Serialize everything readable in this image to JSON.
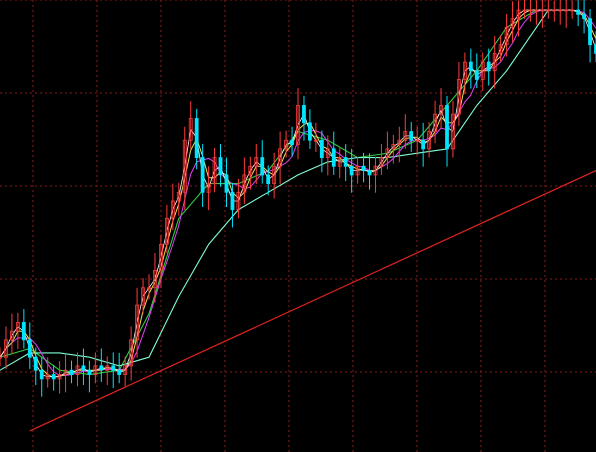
{
  "chart_data": {
    "type": "line",
    "title": "",
    "xlabel": "",
    "ylabel": "",
    "grid": true,
    "legend": "none",
    "xlim": [
      0,
      100
    ],
    "ylim": [
      0,
      100
    ],
    "colors": {
      "background": "#000000",
      "grid": "#8b1a1a",
      "trendline": "#e0241e",
      "price_up": "#ff3b3b",
      "price_down": "#00e5ff",
      "ma_short": "#ffffff",
      "ma_mid": "#f2e05a",
      "ma_long": "#e040fb",
      "ma_green": "#2ecc40",
      "ma_cyan": "#7fffd4"
    },
    "series": [
      {
        "key": "price",
        "style": "candles",
        "x": [
          0,
          1,
          2,
          3,
          4,
          5,
          6,
          7,
          8,
          9,
          10,
          11,
          12,
          13,
          14,
          15,
          16,
          17,
          18,
          19,
          20,
          21,
          22,
          23,
          24,
          25,
          26,
          27,
          28,
          29,
          30,
          31,
          32,
          33,
          34,
          35,
          36,
          37,
          38,
          39,
          40,
          41,
          42,
          43,
          44,
          45,
          46,
          47,
          48,
          49,
          50,
          51,
          52,
          53,
          54,
          55,
          56,
          57,
          58,
          59,
          60,
          61,
          62,
          63,
          64,
          65,
          66,
          67,
          68,
          69,
          70,
          71,
          72,
          73,
          74,
          75,
          76,
          77,
          78,
          79,
          80,
          81,
          82,
          83,
          84,
          85,
          86,
          87,
          88,
          89,
          90,
          91,
          92,
          93,
          94,
          95,
          96,
          97,
          98,
          99,
          100
        ],
        "values": [
          20,
          24,
          26,
          28,
          24,
          20,
          17,
          15,
          16,
          15,
          16,
          17,
          16,
          18,
          17,
          16,
          18,
          17,
          18,
          17,
          16,
          18,
          24,
          32,
          36,
          36,
          40,
          46,
          52,
          56,
          58,
          70,
          75,
          66,
          58,
          60,
          66,
          62,
          58,
          54,
          58,
          62,
          64,
          66,
          62,
          60,
          64,
          68,
          70,
          69,
          78,
          74,
          70,
          70,
          66,
          68,
          64,
          66,
          64,
          62,
          64,
          63,
          62,
          64,
          66,
          68,
          69,
          70,
          72,
          70,
          70,
          68,
          72,
          76,
          78,
          68,
          76,
          84,
          88,
          86,
          84,
          88,
          86,
          90,
          92,
          96,
          98,
          100,
          100,
          100,
          100,
          100,
          100,
          100,
          100,
          100,
          100,
          99,
          98,
          92,
          90
        ]
      },
      {
        "key": "ma_green",
        "style": "line",
        "x": [
          0,
          5,
          10,
          15,
          20,
          25,
          30,
          35,
          40,
          45,
          50,
          55,
          60,
          65,
          70,
          75,
          80,
          85,
          90,
          93
        ],
        "values": [
          20,
          22,
          17,
          16,
          17,
          30,
          52,
          60,
          60,
          63,
          72,
          70,
          66,
          67,
          70,
          78,
          86,
          96,
          100,
          100
        ]
      },
      {
        "key": "ma_cyan",
        "style": "line",
        "x": [
          0,
          5,
          10,
          15,
          20,
          25,
          30,
          35,
          40,
          45,
          50,
          55,
          60,
          65,
          70,
          75,
          80,
          85,
          90,
          92
        ],
        "values": [
          17,
          21,
          21,
          20,
          18,
          20,
          34,
          46,
          54,
          58,
          62,
          65,
          66,
          66,
          67,
          68,
          78,
          86,
          96,
          100
        ]
      }
    ],
    "trendline": {
      "x": [
        5,
        100
      ],
      "y": [
        3,
        63
      ]
    }
  }
}
